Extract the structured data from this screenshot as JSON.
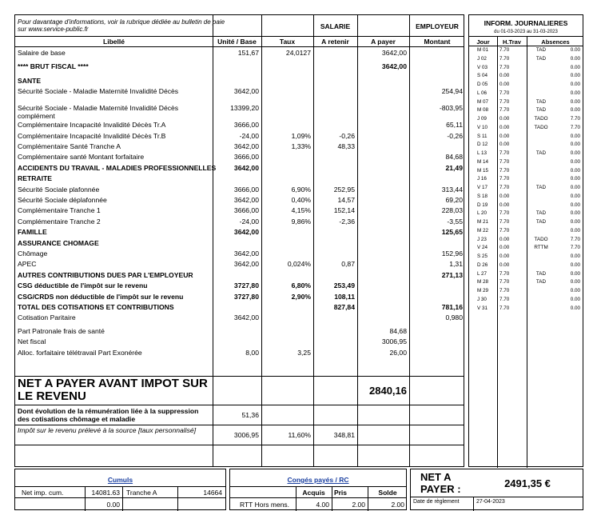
{
  "note": [
    "Pour davantage d'informations, voir la rubrique dédiée au bulletin de paie",
    "sur www.service-public.fr"
  ],
  "headers": {
    "salarie": "SALARIE",
    "employeur": "EMPLOYEUR",
    "libelle": "Libellé",
    "unite_base": "Unité / Base",
    "taux": "Taux",
    "a_retenir": "A retenir",
    "a_payer": "A payer",
    "montant": "Montant"
  },
  "rows": [
    {
      "label": "Salaire de base",
      "base": "151,67",
      "taux": "24,0127",
      "retenir": "",
      "payer": "3642,00",
      "montant": "",
      "style": ""
    },
    {
      "label": "**** BRUT FISCAL ****",
      "base": "",
      "taux": "",
      "retenir": "",
      "payer": "3642,00",
      "montant": "",
      "style": "bold"
    },
    {
      "label": "SANTE",
      "base": "",
      "taux": "",
      "retenir": "",
      "payer": "",
      "montant": "",
      "style": "bold"
    },
    {
      "label": "Sécurité Sociale - Maladie Maternité Invalidité Décès",
      "base": "3642,00",
      "taux": "",
      "retenir": "",
      "payer": "",
      "montant": "254,94",
      "style": ""
    },
    {
      "label": "Sécurité Sociale - Maladie Maternité Invalidité Décès complément",
      "base": "13399,20",
      "taux": "",
      "retenir": "",
      "payer": "",
      "montant": "-803,95",
      "style": ""
    },
    {
      "label": "Complémentaire Incapacité Invalidité Décès Tr.A",
      "base": "3666,00",
      "taux": "",
      "retenir": "",
      "payer": "",
      "montant": "65,11",
      "style": ""
    },
    {
      "label": "Complémentaire Incapacité Invalidité Décès Tr.B",
      "base": "-24,00",
      "taux": "1,09%",
      "retenir": "-0,26",
      "payer": "",
      "montant": "-0,26",
      "style": ""
    },
    {
      "label": "Complémentaire Santé Tranche A",
      "base": "3642,00",
      "taux": "1,33%",
      "retenir": "48,33",
      "payer": "",
      "montant": "",
      "style": ""
    },
    {
      "label": "Complémentaire santé Montant forfaitaire",
      "base": "3666,00",
      "taux": "",
      "retenir": "",
      "payer": "",
      "montant": "84,68",
      "style": ""
    },
    {
      "label": "ACCIDENTS DU TRAVAIL - MALADIES PROFESSIONNELLES",
      "base": "3642,00",
      "taux": "",
      "retenir": "",
      "payer": "",
      "montant": "21,49",
      "style": "bold"
    },
    {
      "label": "RETRAITE",
      "base": "",
      "taux": "",
      "retenir": "",
      "payer": "",
      "montant": "",
      "style": "bold"
    },
    {
      "label": "Sécurité Sociale plafonnée",
      "base": "3666,00",
      "taux": "6,90%",
      "retenir": "252,95",
      "payer": "",
      "montant": "313,44",
      "style": ""
    },
    {
      "label": "Sécurité Sociale déplafonnée",
      "base": "3642,00",
      "taux": "0,40%",
      "retenir": "14,57",
      "payer": "",
      "montant": "69,20",
      "style": ""
    },
    {
      "label": "Complémentaire Tranche 1",
      "base": "3666,00",
      "taux": "4,15%",
      "retenir": "152,14",
      "payer": "",
      "montant": "228,03",
      "style": ""
    },
    {
      "label": "Complémentaire Tranche 2",
      "base": "-24,00",
      "taux": "9,86%",
      "retenir": "-2,36",
      "payer": "",
      "montant": "-3,55",
      "style": ""
    },
    {
      "label": "FAMILLE",
      "base": "3642,00",
      "taux": "",
      "retenir": "",
      "payer": "",
      "montant": "125,65",
      "style": "bold"
    },
    {
      "label": "ASSURANCE CHOMAGE",
      "base": "",
      "taux": "",
      "retenir": "",
      "payer": "",
      "montant": "",
      "style": "bold"
    },
    {
      "label": "Chômage",
      "base": "3642,00",
      "taux": "",
      "retenir": "",
      "payer": "",
      "montant": "152,96",
      "style": ""
    },
    {
      "label": "APEC",
      "base": "3642,00",
      "taux": "0,024%",
      "retenir": "0,87",
      "payer": "",
      "montant": "1,31",
      "style": ""
    },
    {
      "label": "AUTRES CONTRIBUTIONS DUES PAR L'EMPLOYEUR",
      "base": "",
      "taux": "",
      "retenir": "",
      "payer": "",
      "montant": "271,13",
      "style": "bold"
    },
    {
      "label": "CSG déductible de l'impôt sur le revenu",
      "base": "3727,80",
      "taux": "6,80%",
      "retenir": "253,49",
      "payer": "",
      "montant": "",
      "style": "bold"
    },
    {
      "label": "CSG/CRDS non déductible de l'impôt sur le revenu",
      "base": "3727,80",
      "taux": "2,90%",
      "retenir": "108,11",
      "payer": "",
      "montant": "",
      "style": "bold"
    },
    {
      "label": "TOTAL DES COTISATIONS ET CONTRIBUTIONS",
      "base": "",
      "taux": "",
      "retenir": "827,84",
      "payer": "",
      "montant": "781,16",
      "style": "bold"
    },
    {
      "label": "Cotisation Paritaire",
      "base": "3642,00",
      "taux": "",
      "retenir": "",
      "payer": "",
      "montant": "0,980",
      "style": ""
    },
    {
      "label": "Part Patronale frais de santé",
      "base": "",
      "taux": "",
      "retenir": "",
      "payer": "84,68",
      "montant": "",
      "style": ""
    },
    {
      "label": "Net fiscal",
      "base": "",
      "taux": "",
      "retenir": "",
      "payer": "3006,95",
      "montant": "",
      "style": ""
    },
    {
      "label": "Alloc. forfaitaire télétravail Part Exonérée",
      "base": "8,00",
      "taux": "3,25",
      "retenir": "",
      "payer": "26,00",
      "montant": "",
      "style": ""
    }
  ],
  "net_a_payer": {
    "label": "NET A PAYER AVANT IMPOT SUR LE REVENU",
    "value": "2840,16"
  },
  "evolution": {
    "label": "Dont évolution de la rémunération liée à la suppression des cotisations chômage et maladie",
    "value": "51,36"
  },
  "impot": {
    "label": "Impôt sur le revenu prélevé à la source [taux personnalisé]",
    "base": "3006,95",
    "taux": "11,60%",
    "retenir": "348,81"
  },
  "inform": {
    "title": "INFORM. JOURNALIERES",
    "period": "du 01-03-2023 au 31-03-2023",
    "headers": [
      "Jour",
      "H.Trav",
      "Absences"
    ],
    "days": [
      [
        "M 01",
        "7.70",
        "TAD",
        "0.00"
      ],
      [
        "J 02",
        "7.70",
        "TAD",
        "0.00"
      ],
      [
        "V 03",
        "7.70",
        "",
        "0.00"
      ],
      [
        "S 04",
        "0.00",
        "",
        "0.00"
      ],
      [
        "D 05",
        "0.00",
        "",
        "0.00"
      ],
      [
        "L 06",
        "7.70",
        "",
        "0.00"
      ],
      [
        "M 07",
        "7.70",
        "TAD",
        "0.00"
      ],
      [
        "M 08",
        "7.70",
        "TAD",
        "0.00"
      ],
      [
        "J 09",
        "0.00",
        "TADO",
        "7.70"
      ],
      [
        "V 10",
        "0.00",
        "TADO",
        "7.70"
      ],
      [
        "S 11",
        "0.00",
        "",
        "0.00"
      ],
      [
        "D 12",
        "0.00",
        "",
        "0.00"
      ],
      [
        "L 13",
        "7.70",
        "TAD",
        "0.00"
      ],
      [
        "M 14",
        "7.70",
        "",
        "0.00"
      ],
      [
        "M 15",
        "7.70",
        "",
        "0.00"
      ],
      [
        "J 16",
        "7.70",
        "",
        "0.00"
      ],
      [
        "V 17",
        "7.70",
        "TAD",
        "0.00"
      ],
      [
        "S 18",
        "0.00",
        "",
        "0.00"
      ],
      [
        "D 19",
        "0.00",
        "",
        "0.00"
      ],
      [
        "L 20",
        "7.70",
        "TAD",
        "0.00"
      ],
      [
        "M 21",
        "7.70",
        "TAD",
        "0.00"
      ],
      [
        "M 22",
        "7.70",
        "",
        "0.00"
      ],
      [
        "J 23",
        "0.00",
        "TADO",
        "7.70"
      ],
      [
        "V 24",
        "0.00",
        "RTTM",
        "7.70"
      ],
      [
        "S 25",
        "0.00",
        "",
        "0.00"
      ],
      [
        "D 26",
        "0.00",
        "",
        "0.00"
      ],
      [
        "L 27",
        "7.70",
        "TAD",
        "0.00"
      ],
      [
        "M 28",
        "7.70",
        "TAD",
        "0.00"
      ],
      [
        "M 29",
        "7.70",
        "",
        "0.00"
      ],
      [
        "J 30",
        "7.70",
        "",
        "0.00"
      ],
      [
        "V 31",
        "7.70",
        "",
        "0.00"
      ]
    ]
  },
  "cumuls": {
    "title": "Cumuls",
    "net_imp_label": "Net imp. cum.",
    "net_imp_value": "14081.63",
    "tranche_label": "Tranche A",
    "tranche_value": "14664",
    "second_value": "0.00"
  },
  "conges": {
    "title": "Congés payés / RC",
    "headers": [
      "Acquis",
      "Pris",
      "Solde"
    ],
    "row_label": "RTT Hors mens.",
    "acquis": "4.00",
    "pris": "2.00",
    "solde": "2.00"
  },
  "net_final": {
    "label": "NET A PAYER :",
    "value": "2491,35 €",
    "date_label": "Date de règlement",
    "date_value": "27-04-2023"
  }
}
